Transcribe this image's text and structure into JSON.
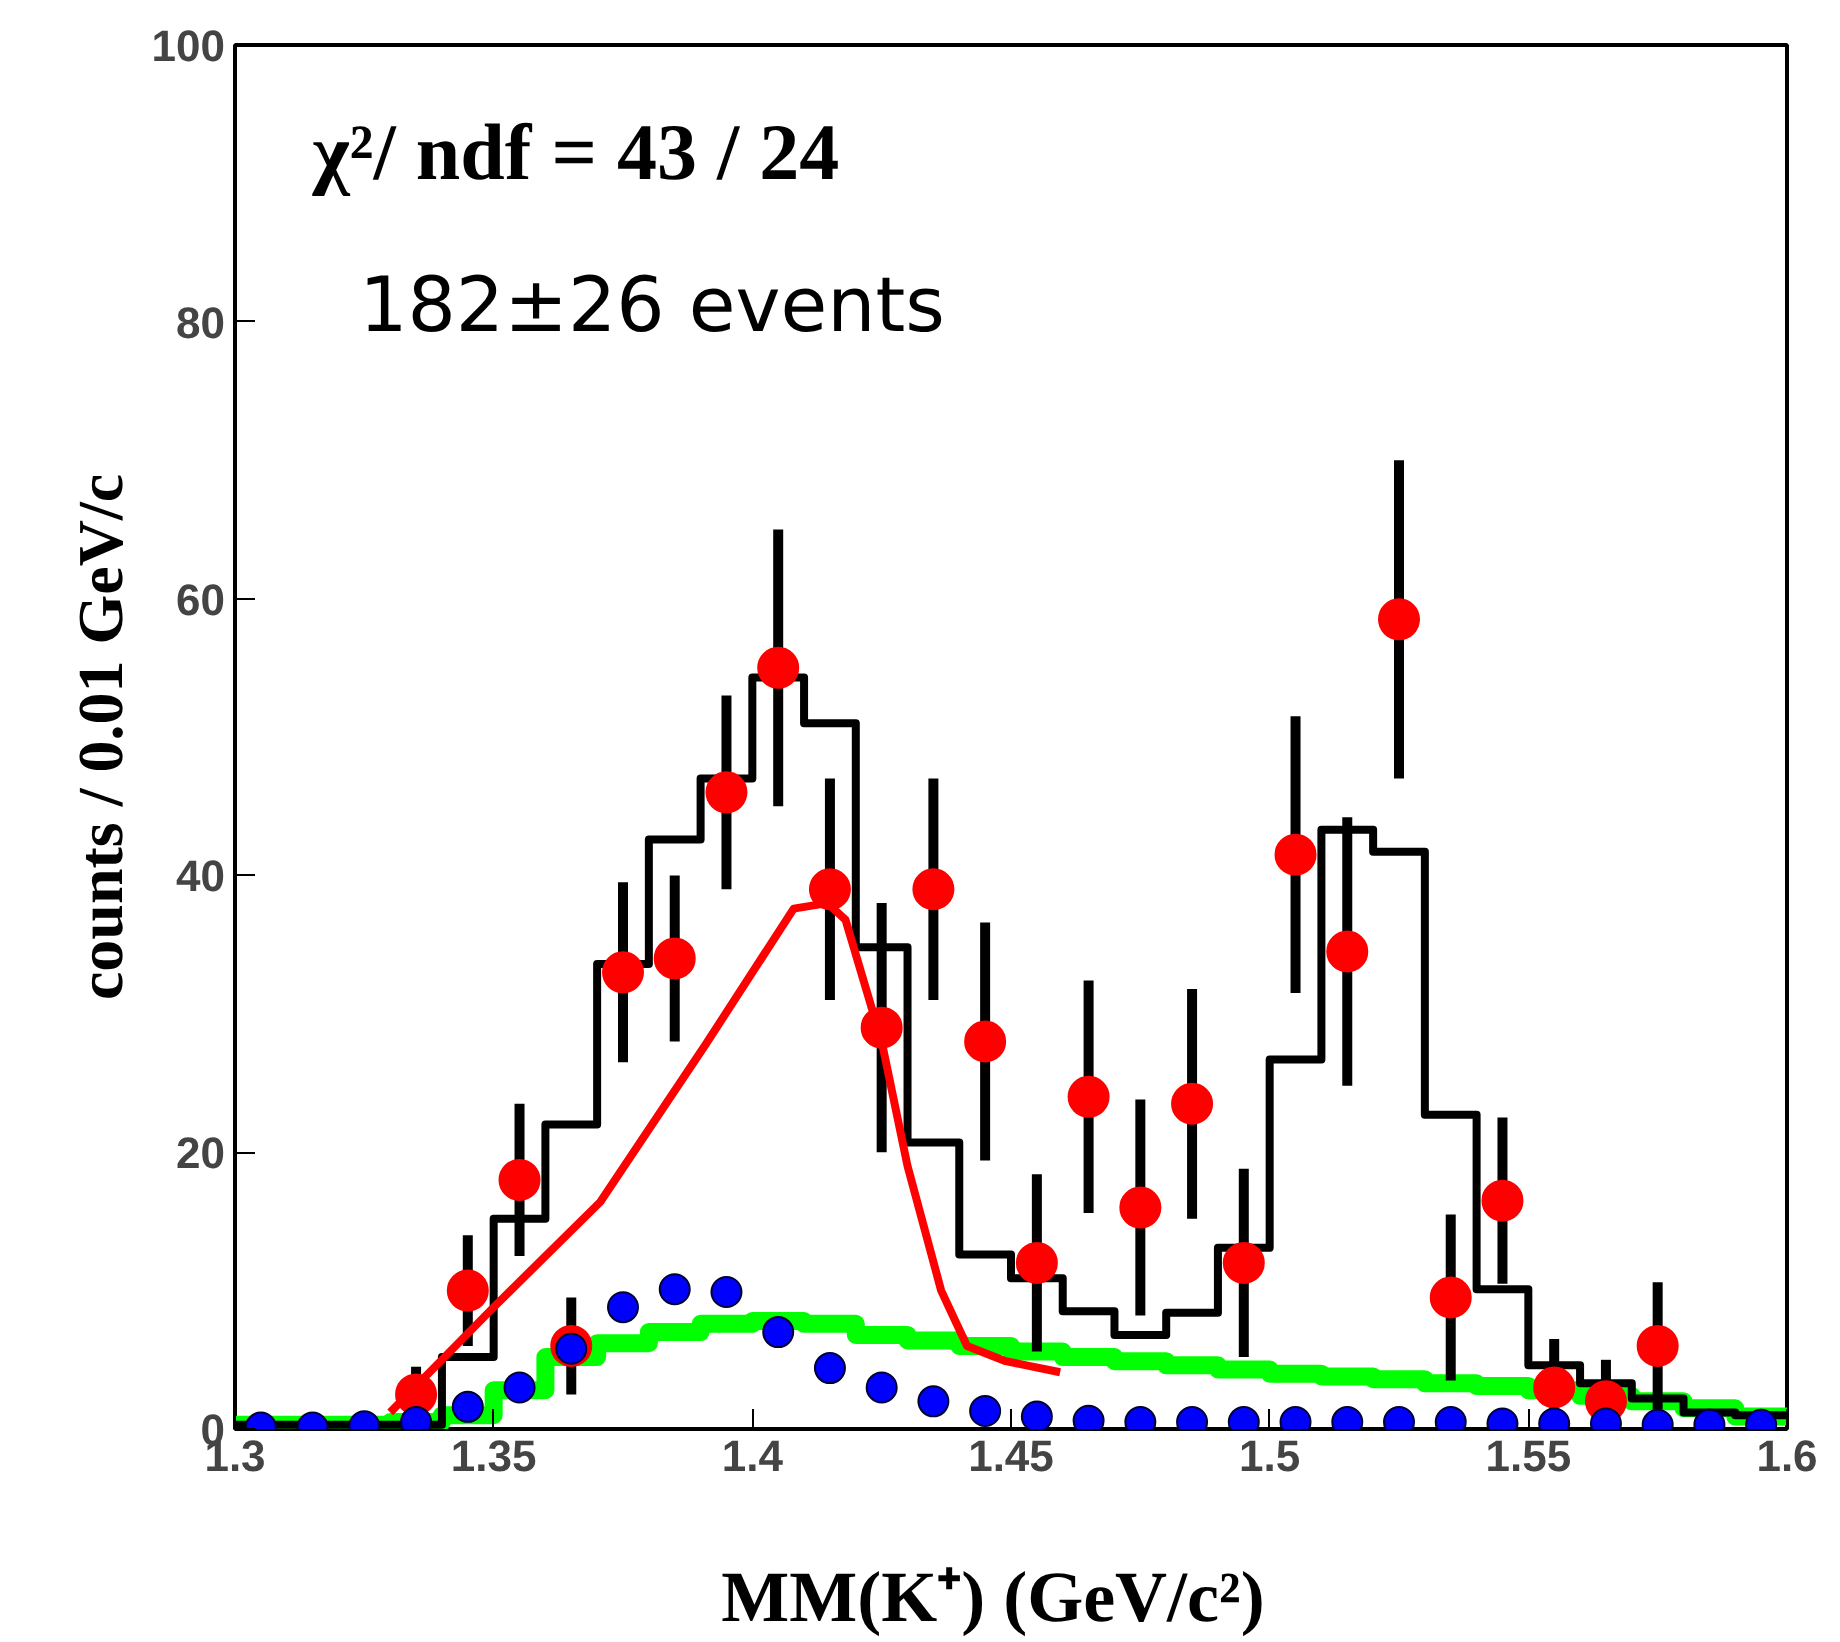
{
  "chart_data": {
    "type": "histogram",
    "ylabel": "counts / 0.01 GeV/c",
    "xlabel": "MM(K⁺)   (GeV/c²)",
    "annotations": [
      "χ²/ ndf =  43 / 24",
      "182±26 events"
    ],
    "xlim": [
      1.3,
      1.6
    ],
    "xticks": [
      1.3,
      1.35,
      1.4,
      1.45,
      1.5,
      1.55,
      1.6
    ],
    "ylim": [
      0,
      100
    ],
    "yticks": [
      0,
      20,
      40,
      60,
      80,
      100
    ],
    "grid": false,
    "bins": [
      1.3,
      1.31,
      1.32,
      1.33,
      1.34,
      1.35,
      1.36,
      1.37,
      1.38,
      1.39,
      1.4,
      1.41,
      1.42,
      1.43,
      1.44,
      1.45,
      1.46,
      1.47,
      1.48,
      1.49,
      1.5,
      1.51,
      1.52,
      1.53,
      1.54,
      1.55,
      1.56,
      1.57,
      1.58,
      1.59,
      1.6
    ],
    "color": "#000000",
    "values": [
      0.3,
      0.3,
      0.3,
      0.3,
      5.2,
      15.2,
      22,
      33.6,
      42.6,
      47,
      54.3,
      51,
      34.8,
      20.7,
      12.6,
      10.9,
      8.5,
      6.8,
      8.4,
      13.1,
      26.7,
      43.3,
      41.7,
      22.7,
      10.1,
      4.6,
      3.3,
      2.2,
      1.2,
      1.0
    ],
    "series": [
      {
        "type": "histogram",
        "color": "#00ff00",
        "values": [
          0.3,
          0.3,
          0.3,
          0.5,
          1,
          2.8,
          5.2,
          6.2,
          7,
          7.6,
          7.8,
          7.6,
          6.8,
          6.4,
          6.0,
          5.6,
          5.2,
          4.9,
          4.6,
          4.3,
          4.0,
          3.8,
          3.6,
          3.3,
          3.1,
          2.8,
          2.4,
          2.0,
          1.5,
          0.9
        ]
      },
      {
        "type": "scatter",
        "marker": "circle",
        "color": "#0000ff",
        "x": [
          1.305,
          1.315,
          1.325,
          1.335,
          1.345,
          1.355,
          1.365,
          1.375,
          1.385,
          1.395,
          1.405,
          1.415,
          1.425,
          1.435,
          1.445,
          1.455,
          1.465,
          1.475,
          1.485,
          1.495,
          1.505,
          1.515,
          1.525,
          1.535,
          1.545,
          1.555,
          1.565,
          1.575,
          1.585,
          1.595
        ],
        "values": [
          0.1,
          0.1,
          0.2,
          0.5,
          1.6,
          3,
          5.8,
          8.8,
          10.1,
          9.9,
          7,
          4.4,
          3,
          2,
          1.3,
          0.9,
          0.6,
          0.5,
          0.5,
          0.5,
          0.5,
          0.5,
          0.5,
          0.5,
          0.4,
          0.4,
          0.4,
          0.3,
          0.3,
          0.3
        ]
      },
      {
        "type": "line",
        "color": "#ff0000",
        "x": [
          1.33,
          1.34,
          1.35,
          1.3706,
          1.391,
          1.408,
          1.4145,
          1.418,
          1.425,
          1.43,
          1.4365,
          1.4415,
          1.449,
          1.4595
        ],
        "values": [
          1.2,
          5,
          8.8,
          16.4,
          27.8,
          37.6,
          38,
          36.8,
          28,
          19,
          10,
          6,
          4.9,
          4.1
        ]
      },
      {
        "type": "scatter",
        "marker": "circle",
        "color": "#ff0000",
        "x": [
          1.335,
          1.345,
          1.355,
          1.365,
          1.375,
          1.385,
          1.395,
          1.405,
          1.415,
          1.425,
          1.435,
          1.445,
          1.455,
          1.465,
          1.475,
          1.485,
          1.495,
          1.505,
          1.515,
          1.525,
          1.535,
          1.545,
          1.555,
          1.565,
          1.575
        ],
        "values": [
          2.5,
          10,
          18,
          6,
          33,
          34,
          46,
          55,
          39,
          29,
          39,
          28,
          12,
          24,
          16,
          23.5,
          12,
          41.5,
          34.5,
          58.5,
          9.5,
          16.5,
          3,
          2,
          6
        ],
        "errors": [
          2,
          4,
          5.5,
          3.5,
          6.5,
          6,
          7,
          10,
          8,
          9,
          8,
          8.6,
          6.4,
          8.4,
          7.8,
          8.3,
          6.8,
          10,
          9.7,
          11.5,
          6,
          6,
          3.5,
          3,
          4.6
        ]
      }
    ]
  }
}
